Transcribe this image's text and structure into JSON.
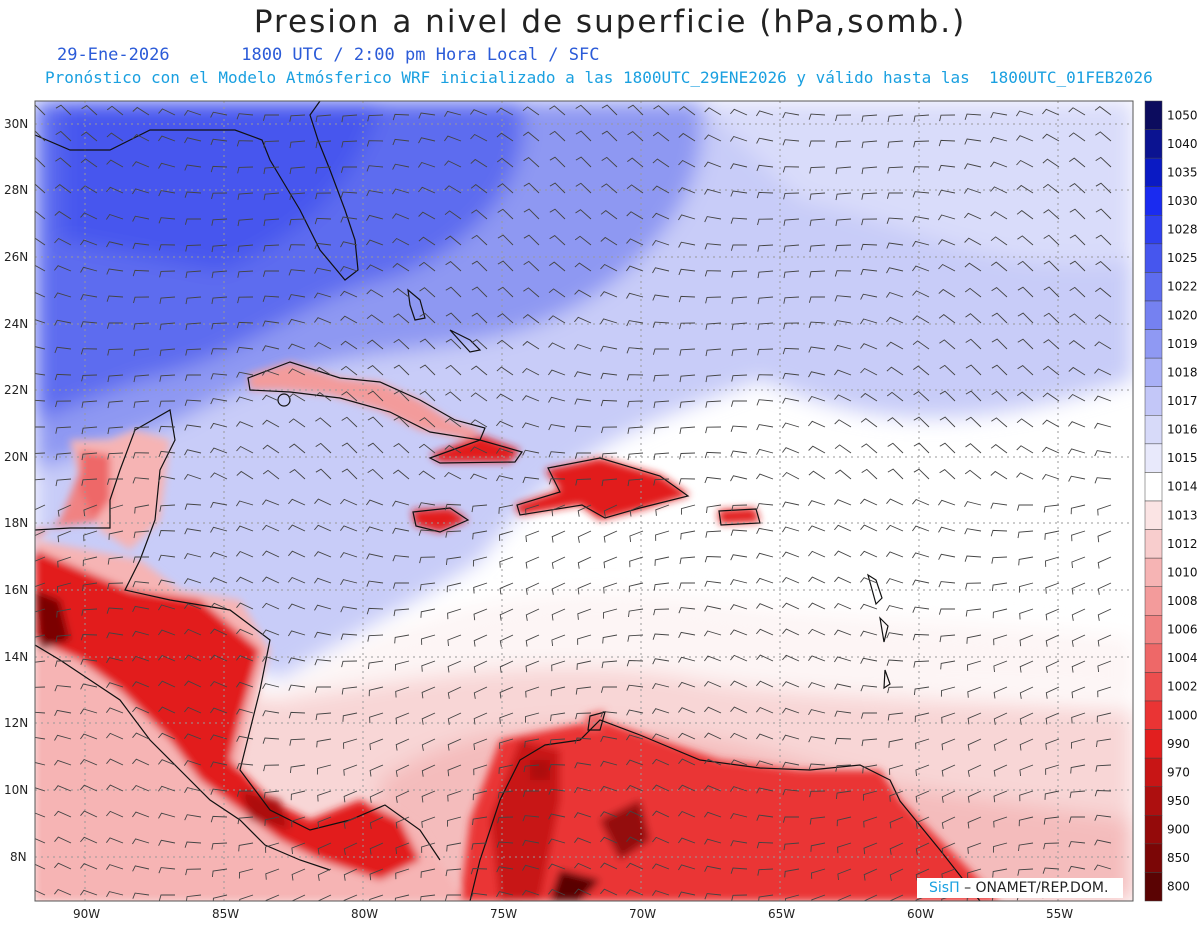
{
  "title": "Presion a nivel de superficie (hPa,somb.)",
  "date": "29-Ene-2026",
  "time": "1800 UTC / 2:00 pm Hora Local / SFC",
  "subtitle": "Pronóstico con el Modelo Atmósferico WRF inicializado a las 1800UTC_29ENE2026 y válido hasta las  1800UTC_01FEB2026",
  "credit": {
    "logo": "SisΠ",
    "text": "– ONAMET/REP.DOM."
  },
  "lat_labels": [
    "30N",
    "28N",
    "26N",
    "24N",
    "22N",
    "20N",
    "18N",
    "16N",
    "14N",
    "12N",
    "10N",
    "8N"
  ],
  "lon_labels": [
    "90W",
    "85W",
    "80W",
    "75W",
    "70W",
    "65W",
    "60W",
    "55W"
  ],
  "colorbar": [
    {
      "value": "1050",
      "color": "#0c0c5e"
    },
    {
      "value": "1040",
      "color": "#0b1391"
    },
    {
      "value": "1035",
      "color": "#0a1ac4"
    },
    {
      "value": "1030",
      "color": "#1a2bf0"
    },
    {
      "value": "1028",
      "color": "#2f40ee"
    },
    {
      "value": "1025",
      "color": "#4656ee"
    },
    {
      "value": "1022",
      "color": "#5d6cef"
    },
    {
      "value": "1020",
      "color": "#7581f1"
    },
    {
      "value": "1019",
      "color": "#8f99f3"
    },
    {
      "value": "1018",
      "color": "#a9b0f6"
    },
    {
      "value": "1017",
      "color": "#c3c7f8"
    },
    {
      "value": "1016",
      "color": "#d7daf9"
    },
    {
      "value": "1015",
      "color": "#e8e9fb"
    },
    {
      "value": "1014",
      "color": "#ffffff"
    },
    {
      "value": "1013",
      "color": "#fbe4e4"
    },
    {
      "value": "1012",
      "color": "#f8cdcd"
    },
    {
      "value": "1010",
      "color": "#f6b4b4"
    },
    {
      "value": "1008",
      "color": "#f39b9b"
    },
    {
      "value": "1006",
      "color": "#f08282"
    },
    {
      "value": "1004",
      "color": "#ee6868"
    },
    {
      "value": "1002",
      "color": "#ec4e4e"
    },
    {
      "value": "1000",
      "color": "#ea3434"
    },
    {
      "value": "990",
      "color": "#e21f1f"
    },
    {
      "value": "970",
      "color": "#c81515"
    },
    {
      "value": "950",
      "color": "#ad0f0f"
    },
    {
      "value": "900",
      "color": "#940a0a"
    },
    {
      "value": "850",
      "color": "#7b0606"
    },
    {
      "value": "800",
      "color": "#5a0303"
    }
  ]
}
